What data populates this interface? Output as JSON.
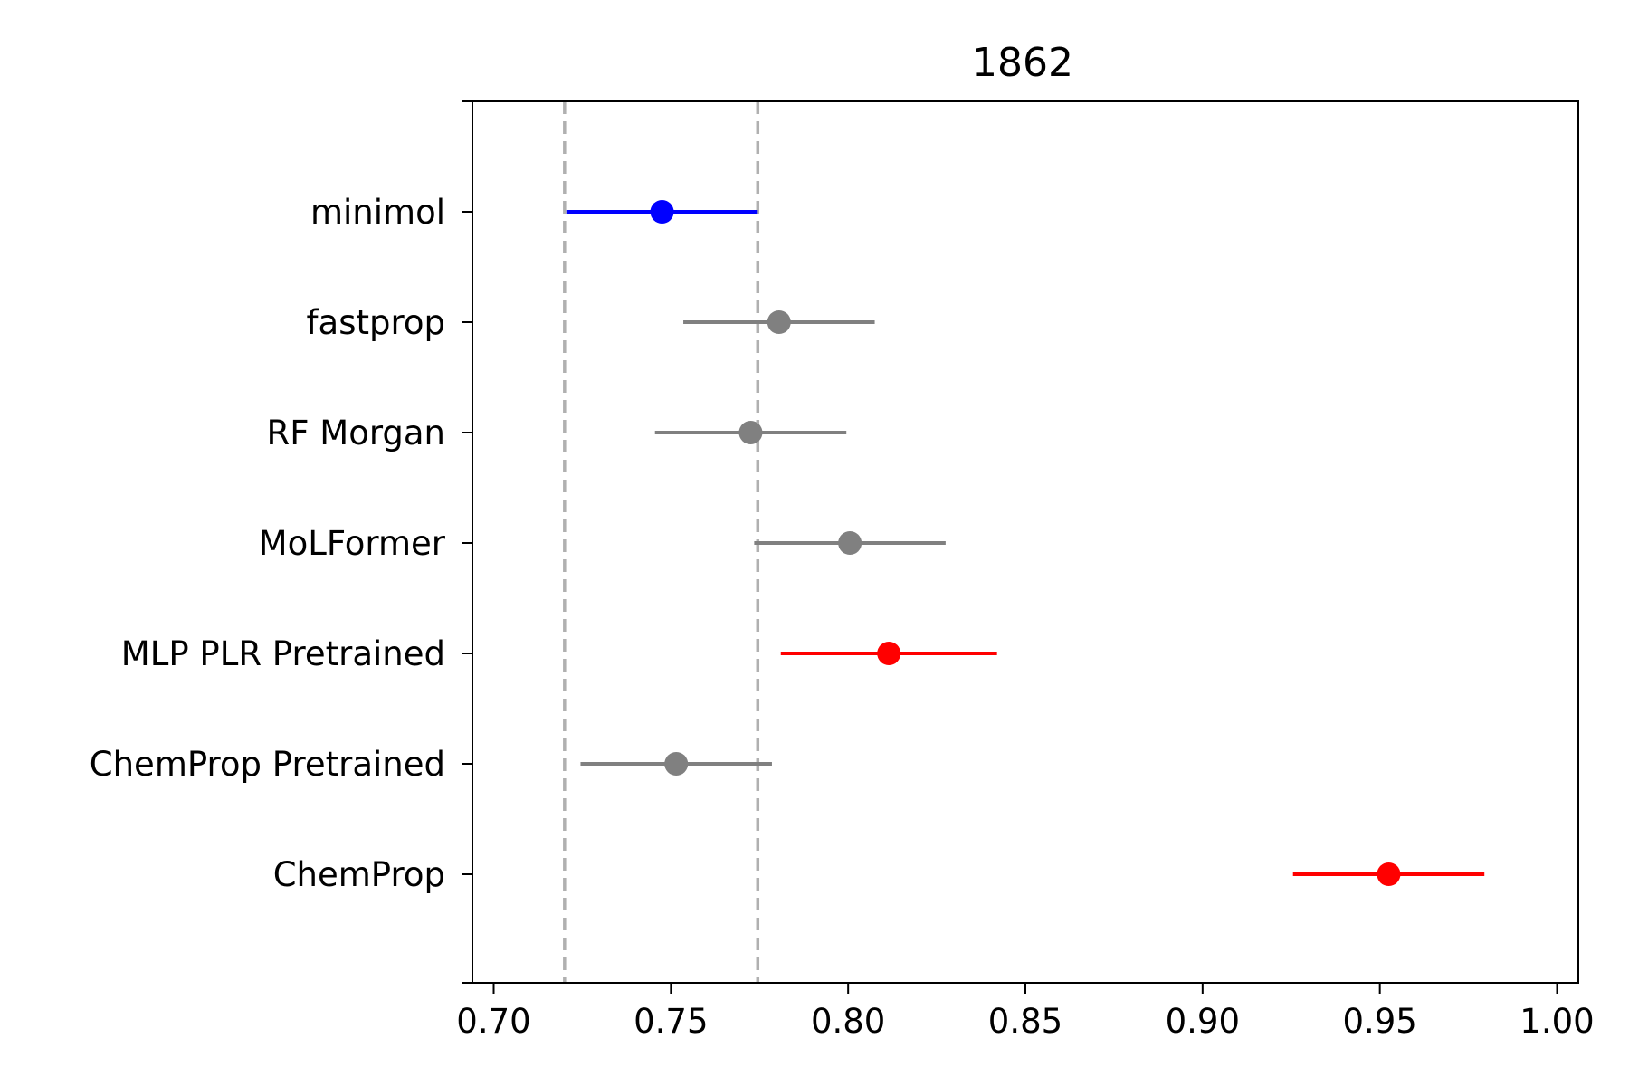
{
  "chart_data": {
    "type": "forest",
    "title": "1862",
    "xlabel": "",
    "ylabel": "",
    "xlim": [
      0.694,
      1.006
    ],
    "x_ticks": [
      "0.70",
      "0.75",
      "0.80",
      "0.85",
      "0.90",
      "0.95",
      "1.00"
    ],
    "x_tick_values": [
      0.7,
      0.75,
      0.8,
      0.85,
      0.9,
      0.95,
      1.0
    ],
    "reference_lines": [
      0.72,
      0.7745
    ],
    "reference_line_color": "#b0b0b0",
    "grid": false,
    "categories": [
      "minimol",
      "fastprop",
      "RF Morgan",
      "MoLFormer",
      "MLP PLR Pretrained",
      "ChemProp Pretrained",
      "ChemProp"
    ],
    "points": [
      {
        "label": "minimol",
        "value": 0.7475,
        "low": 0.7205,
        "high": 0.7745,
        "color": "#0000ff"
      },
      {
        "label": "fastprop",
        "value": 0.7805,
        "low": 0.7535,
        "high": 0.8075,
        "color": "#808080"
      },
      {
        "label": "RF Morgan",
        "value": 0.7725,
        "low": 0.7455,
        "high": 0.7995,
        "color": "#808080"
      },
      {
        "label": "MoLFormer",
        "value": 0.8005,
        "low": 0.7735,
        "high": 0.8275,
        "color": "#808080"
      },
      {
        "label": "MLP PLR Pretrained",
        "value": 0.8115,
        "low": 0.781,
        "high": 0.842,
        "color": "#ff0000"
      },
      {
        "label": "ChemProp Pretrained",
        "value": 0.7515,
        "low": 0.7245,
        "high": 0.7785,
        "color": "#808080"
      },
      {
        "label": "ChemProp",
        "value": 0.9525,
        "low": 0.9255,
        "high": 0.9795,
        "color": "#ff0000"
      }
    ]
  }
}
